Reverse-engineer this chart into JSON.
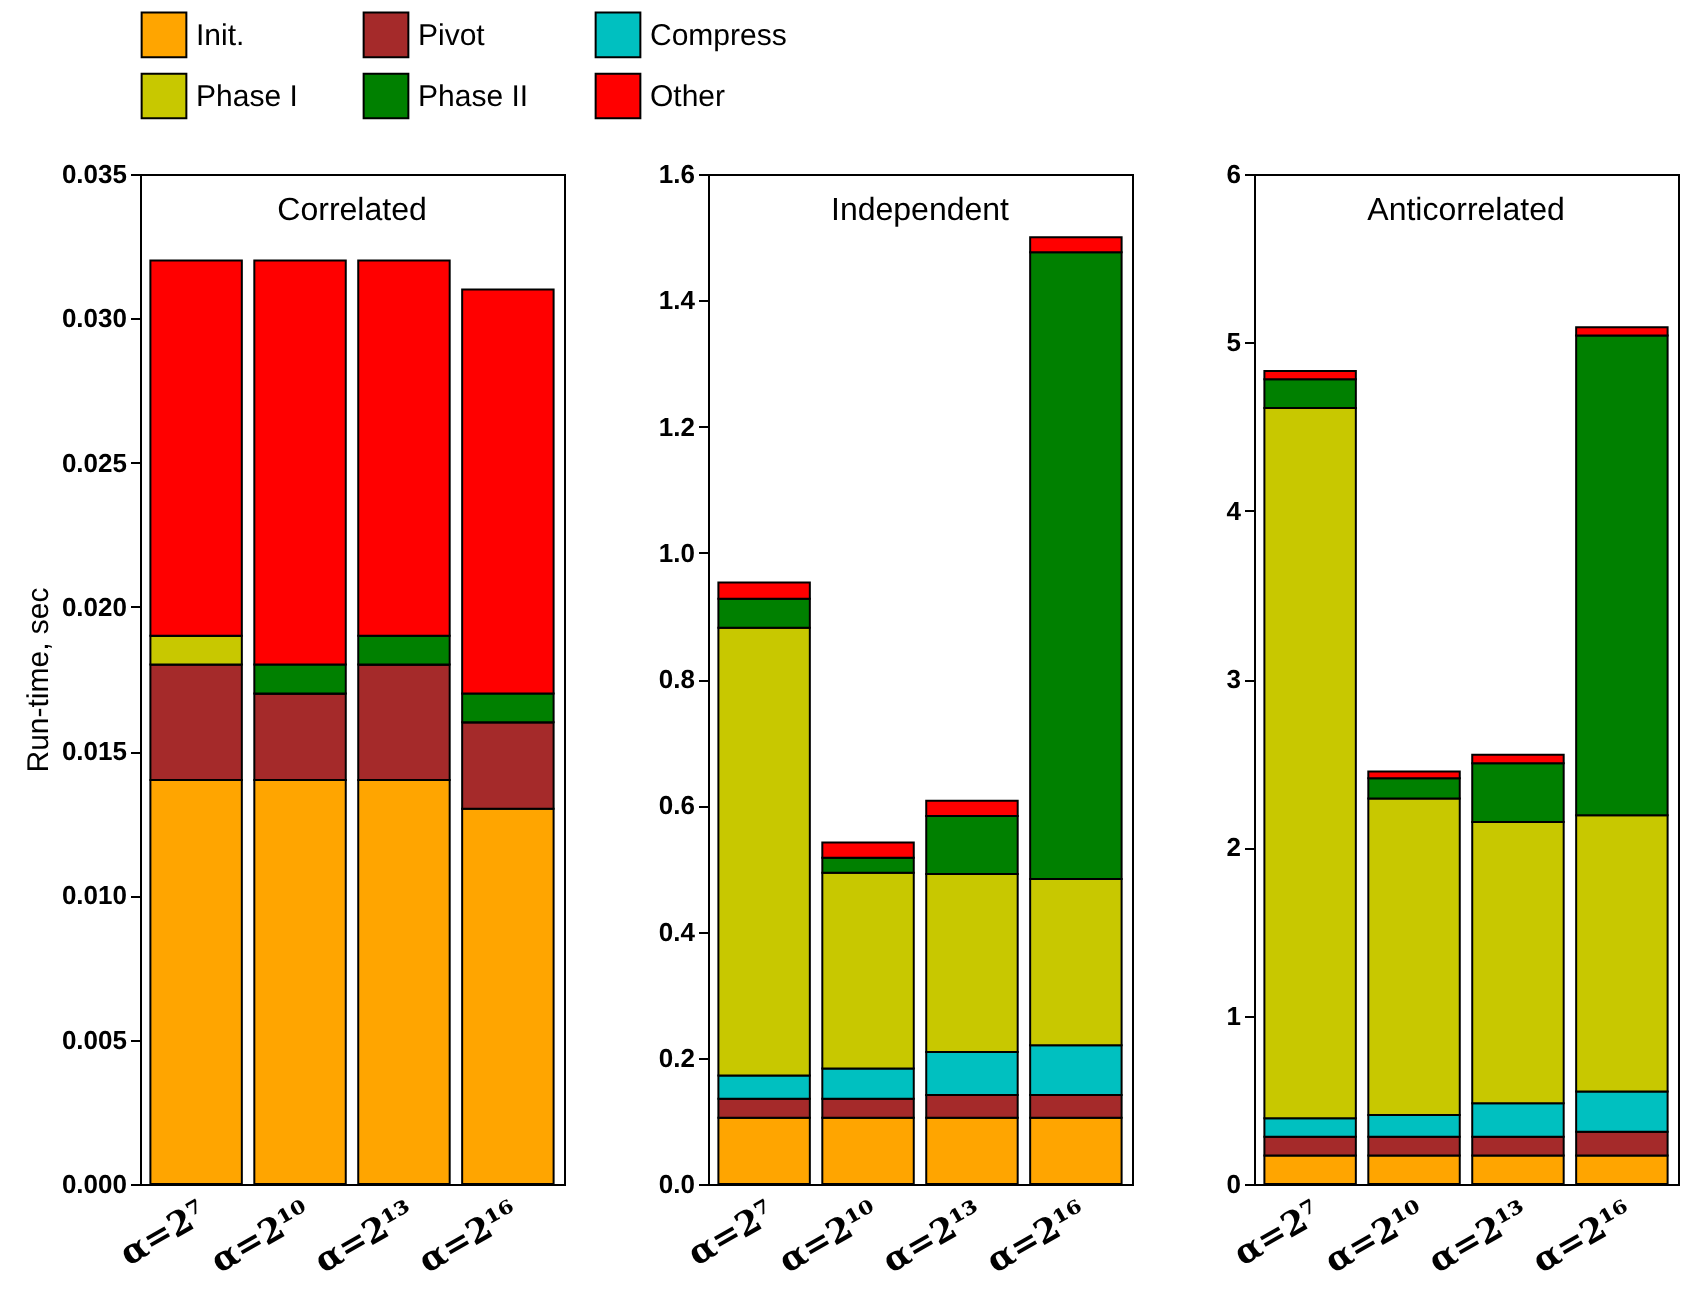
{
  "chart_data": [
    {
      "type": "bar",
      "stacked": true,
      "title": "Correlated",
      "ylabel": "Run-time, sec",
      "legend": "top",
      "grid": false,
      "categories": [
        "α=2⁷",
        "α=2¹⁰",
        "α=2¹³",
        "α=2¹⁶"
      ],
      "ylim": [
        0,
        0.035
      ],
      "yticks": [
        {
          "value": 0,
          "label": "0.000"
        },
        0.005,
        {
          "value": 0.01,
          "label": "0.010"
        },
        0.015,
        {
          "value": 0.02,
          "label": "0.020"
        },
        0.025,
        {
          "value": 0.03,
          "label": "0.030"
        },
        0.035
      ],
      "series": [
        {
          "name": "Init.",
          "color": "#ffa500",
          "values": [
            0.014,
            0.014,
            0.014,
            0.013
          ]
        },
        {
          "name": "Pivot",
          "color": "#a52a2a",
          "values": [
            0.004,
            0.003,
            0.004,
            0.003
          ]
        },
        {
          "name": "Compress",
          "color": "#00c0c0",
          "values": [
            0,
            0,
            0,
            0
          ]
        },
        {
          "name": "Phase I",
          "color": "#c8c800",
          "values": [
            0.001,
            0,
            0,
            0
          ]
        },
        {
          "name": "Phase II",
          "color": "#008000",
          "values": [
            0,
            0.001,
            0.001,
            0.001
          ]
        },
        {
          "name": "Other",
          "color": "#ff0000",
          "values": [
            0.013,
            0.014,
            0.013,
            0.014
          ]
        }
      ]
    },
    {
      "type": "bar",
      "stacked": true,
      "title": "Independent",
      "grid": false,
      "categories": [
        "α=2⁷",
        "α=2¹⁰",
        "α=2¹³",
        "α=2¹⁶"
      ],
      "ylim": [
        0,
        1.6
      ],
      "yticks": [
        {
          "value": 0,
          "label": "0.0"
        },
        0.2,
        0.4,
        0.6,
        0.8,
        {
          "value": 1,
          "label": "1.0"
        },
        1.2,
        1.4,
        1.6
      ],
      "series": [
        {
          "color": "#ffa500",
          "values": [
            0.105,
            0.105,
            0.105,
            0.105
          ]
        },
        {
          "color": "#a52a2a",
          "values": [
            0.03,
            0.03,
            0.036,
            0.036
          ]
        },
        {
          "color": "#00c0c0",
          "values": [
            0.037,
            0.048,
            0.068,
            0.079
          ]
        },
        {
          "color": "#c8c800",
          "values": [
            0.709,
            0.31,
            0.282,
            0.263
          ]
        },
        {
          "color": "#008000",
          "values": [
            0.046,
            0.024,
            0.092,
            0.993
          ]
        },
        {
          "color": "#ff0000",
          "values": [
            0.026,
            0.024,
            0.024,
            0.024
          ]
        }
      ]
    },
    {
      "type": "bar",
      "stacked": true,
      "title": "Anticorrelated",
      "grid": false,
      "categories": [
        "α=2⁷",
        "α=2¹⁰",
        "α=2¹³",
        "α=2¹⁶"
      ],
      "ylim": [
        0,
        6
      ],
      "yticks": [
        0,
        1,
        2,
        3,
        4,
        5,
        6
      ],
      "series": [
        {
          "color": "#ffa500",
          "values": [
            0.17,
            0.17,
            0.17,
            0.17
          ]
        },
        {
          "color": "#a52a2a",
          "values": [
            0.11,
            0.11,
            0.11,
            0.14
          ]
        },
        {
          "color": "#00c0c0",
          "values": [
            0.11,
            0.13,
            0.2,
            0.24
          ]
        },
        {
          "color": "#c8c800",
          "values": [
            4.22,
            1.88,
            1.67,
            1.64
          ]
        },
        {
          "color": "#008000",
          "values": [
            0.17,
            0.12,
            0.35,
            2.85
          ]
        },
        {
          "color": "#ff0000",
          "values": [
            0.05,
            0.04,
            0.05,
            0.05
          ]
        }
      ]
    }
  ]
}
